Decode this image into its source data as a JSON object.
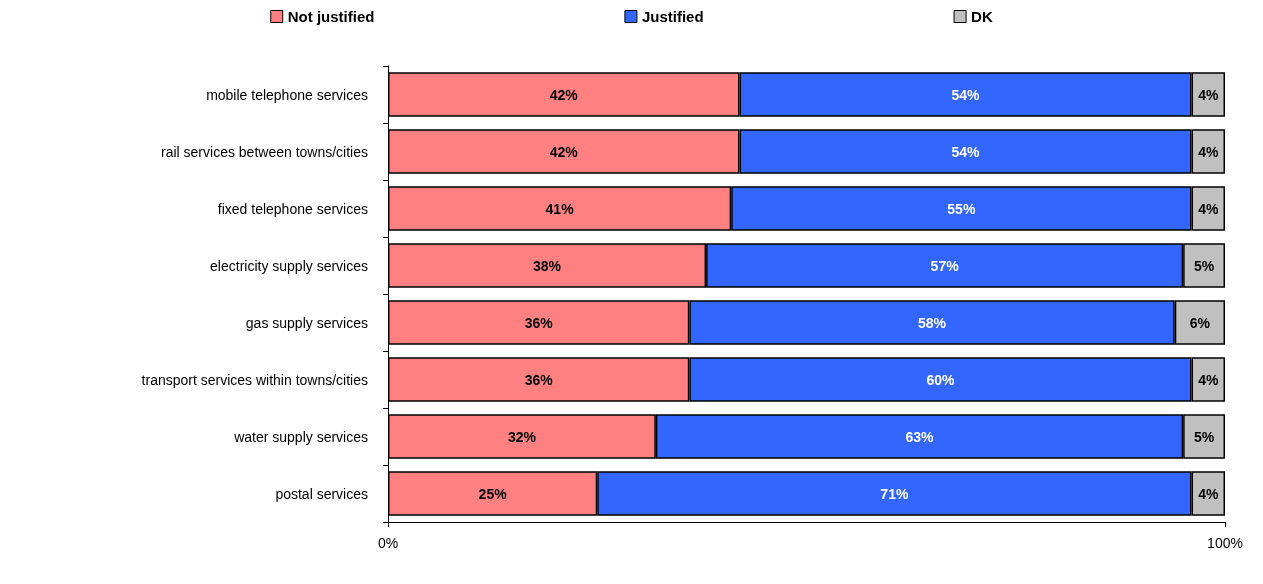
{
  "chart_data": {
    "type": "bar",
    "orientation": "horizontal",
    "stacked": true,
    "categories": [
      "mobile telephone services",
      "rail services between towns/cities",
      "fixed telephone services",
      "electricity supply services",
      "gas supply services",
      "transport services within towns/cities",
      "water supply services",
      "postal services"
    ],
    "series": [
      {
        "name": "Not justified",
        "color": "#ff8080",
        "values": [
          42,
          42,
          41,
          38,
          36,
          36,
          32,
          25
        ],
        "value_labels": [
          "42%",
          "42%",
          "41%",
          "38%",
          "36%",
          "36%",
          "32%",
          "25%"
        ]
      },
      {
        "name": "Justified",
        "color": "#3366ff",
        "values": [
          54,
          54,
          55,
          57,
          58,
          60,
          63,
          71
        ],
        "value_labels": [
          "54%",
          "54%",
          "55%",
          "57%",
          "58%",
          "60%",
          "63%",
          "71%"
        ]
      },
      {
        "name": "DK",
        "color": "#c0c0c0",
        "values": [
          4,
          4,
          4,
          5,
          6,
          4,
          5,
          4
        ],
        "value_labels": [
          "4%",
          "4%",
          "4%",
          "5%",
          "6%",
          "4%",
          "5%",
          "4%"
        ]
      }
    ],
    "xlim": [
      0,
      100
    ],
    "xticks": [
      {
        "value": 0,
        "label": "0%"
      },
      {
        "value": 100,
        "label": "100%"
      }
    ],
    "grid": false,
    "legend": "top"
  }
}
